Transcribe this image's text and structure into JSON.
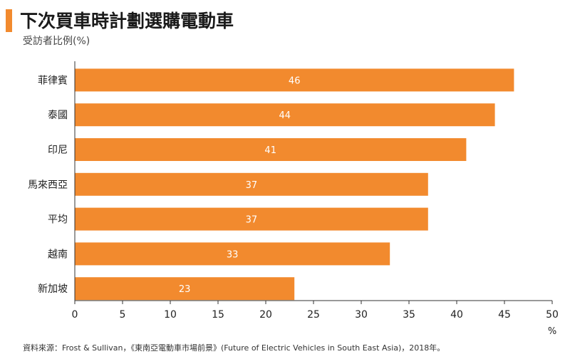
{
  "header": {
    "title": "下次買車時計劃選購電動車",
    "subtitle": "受訪者比例(%)"
  },
  "chart_data": {
    "type": "bar",
    "orientation": "horizontal",
    "categories": [
      "菲律賓",
      "泰國",
      "印尼",
      "馬來西亞",
      "平均",
      "越南",
      "新加坡"
    ],
    "values": [
      46,
      44,
      41,
      37,
      37,
      33,
      23
    ],
    "data_labels": [
      "46",
      "44",
      "41",
      "37",
      "37",
      "33",
      "23"
    ],
    "xlim": [
      0,
      50
    ],
    "xticks": [
      0,
      5,
      10,
      15,
      20,
      25,
      30,
      35,
      40,
      45,
      50
    ],
    "xlabel": "%",
    "grid": false,
    "bar_color": "#f28a2e",
    "label_color": "#ffffff"
  },
  "footer": {
    "source": "資料來源：Frost & Sullivan，《東南亞電動車市場前景》(Future of Electric Vehicles in South East Asia)，2018年。"
  }
}
